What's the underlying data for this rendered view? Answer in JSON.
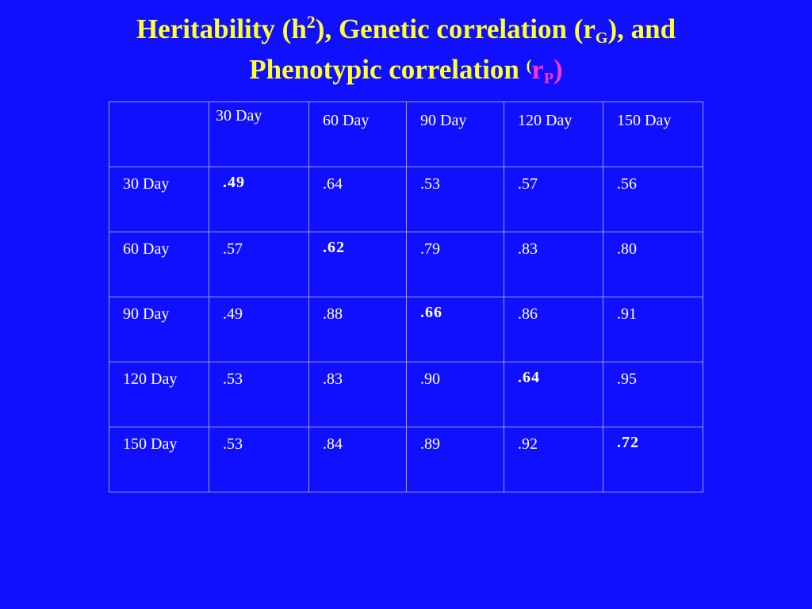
{
  "title": {
    "line1_prefix": "Heritability (h",
    "line1_sup": "2",
    "line1_mid": "), Genetic correlation (r",
    "line1_sub": "G",
    "line1_suffix": "), and",
    "line2_prefix": "Phenotypic correlation ",
    "line2_open": "(",
    "line2_r": "r",
    "line2_sub": "P",
    "line2_close": ")"
  },
  "colors": {
    "background": "#1010ff",
    "title": "#ffff33",
    "heritability": "#ffff33",
    "genetic": "#ffffff",
    "phenotypic": "#ff33cc"
  },
  "table": {
    "header": [
      "",
      "30 Day",
      "60 Day",
      "90 Day",
      "120 Day",
      "150 Day"
    ],
    "rows": [
      {
        "label": "30 Day",
        "cells": [
          ".49",
          ".64",
          ".53",
          ".57",
          ".56"
        ]
      },
      {
        "label": "60 Day",
        "cells": [
          ".57",
          ".62",
          ".79",
          ".83",
          ".80"
        ]
      },
      {
        "label": "90 Day",
        "cells": [
          ".49",
          ".88",
          ".66",
          ".86",
          ".91"
        ]
      },
      {
        "label": "120 Day",
        "cells": [
          ".53",
          ".83",
          ".90",
          ".64",
          ".95"
        ]
      },
      {
        "label": "150 Day",
        "cells": [
          ".53",
          ".84",
          ".89",
          ".92",
          ".72"
        ]
      }
    ]
  }
}
